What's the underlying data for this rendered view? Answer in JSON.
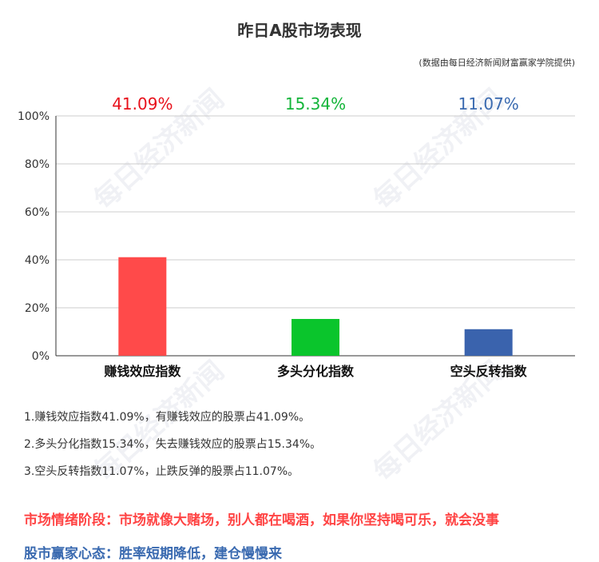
{
  "title": "昨日A股市场表现",
  "source": "(数据由每日经济新闻财富赢家学院提供)",
  "watermark": "每日经济新闻",
  "chart_data": {
    "type": "bar",
    "categories": [
      "赚钱效应指数",
      "多头分化指数",
      "空头反转指数"
    ],
    "values": [
      41.09,
      15.34,
      11.07
    ],
    "value_labels": [
      "41.09%",
      "15.34%",
      "11.07%"
    ],
    "colors": [
      "#ff4a4a",
      "#0ac52c",
      "#3a63ad"
    ],
    "label_colors": [
      "#e8101b",
      "#14b53a",
      "#3a6ab0"
    ],
    "ylim": [
      0,
      100
    ],
    "yticks": [
      "0%",
      "20%",
      "40%",
      "60%",
      "80%",
      "100%"
    ],
    "grid": true
  },
  "notes": [
    "1.赚钱效应指数41.09%，有赚钱效应的股票占41.09%。",
    "2.多头分化指数15.34%，失去赚钱效应的股票占15.34%。",
    "3.空头反转指数11.07%，止跌反弹的股票占11.07%。"
  ],
  "market_mood": "市场情绪阶段：市场就像大赌场，别人都在喝酒，如果你坚持喝可乐，就会没事",
  "investor_mentality": "股市赢家心态：胜率短期降低，建仓慢慢来"
}
